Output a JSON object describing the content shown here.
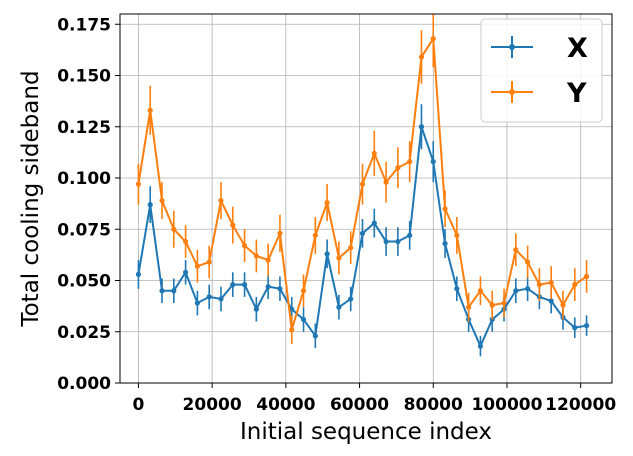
{
  "chart_data": {
    "type": "line",
    "xlabel": "Initial sequence index",
    "ylabel": "Total cooling sideband",
    "xlim": [
      -5000,
      128500
    ],
    "ylim": [
      0,
      0.18
    ],
    "xticks": [
      0,
      20000,
      40000,
      60000,
      80000,
      100000,
      120000
    ],
    "xtick_labels": [
      "0",
      "20000",
      "40000",
      "60000",
      "80000",
      "100000",
      "120000"
    ],
    "yticks": [
      0.0,
      0.025,
      0.05,
      0.075,
      0.1,
      0.125,
      0.15,
      0.175
    ],
    "ytick_labels": [
      "0.000",
      "0.025",
      "0.050",
      "0.075",
      "0.100",
      "0.125",
      "0.150",
      "0.175"
    ],
    "grid": true,
    "legend_position": "top-right",
    "x": [
      0,
      3200,
      6400,
      9600,
      12800,
      16000,
      19200,
      22400,
      25600,
      28800,
      32000,
      35200,
      38400,
      41600,
      44800,
      48000,
      51200,
      54400,
      57600,
      60800,
      64000,
      67200,
      70400,
      73600,
      76800,
      80000,
      83200,
      86400,
      89600,
      92800,
      96000,
      99200,
      102400,
      105600,
      108800,
      112000,
      115200,
      118400,
      121600
    ],
    "series": [
      {
        "name": "X",
        "color": "#1f77b4",
        "values": [
          0.053,
          0.087,
          0.045,
          0.045,
          0.054,
          0.039,
          0.042,
          0.041,
          0.048,
          0.048,
          0.036,
          0.047,
          0.046,
          0.036,
          0.031,
          0.023,
          0.063,
          0.037,
          0.041,
          0.073,
          0.078,
          0.069,
          0.069,
          0.072,
          0.125,
          0.108,
          0.068,
          0.046,
          0.031,
          0.018,
          0.031,
          0.036,
          0.045,
          0.046,
          0.042,
          0.04,
          0.032,
          0.027,
          0.028
        ],
        "errors": [
          0.007,
          0.009,
          0.006,
          0.006,
          0.006,
          0.006,
          0.006,
          0.006,
          0.006,
          0.006,
          0.006,
          0.006,
          0.006,
          0.006,
          0.006,
          0.006,
          0.007,
          0.006,
          0.006,
          0.007,
          0.007,
          0.007,
          0.007,
          0.007,
          0.011,
          0.01,
          0.007,
          0.006,
          0.006,
          0.005,
          0.006,
          0.006,
          0.006,
          0.006,
          0.006,
          0.006,
          0.006,
          0.005,
          0.005
        ]
      },
      {
        "name": "Y",
        "color": "#ff7f0e",
        "values": [
          0.097,
          0.133,
          0.089,
          0.075,
          0.069,
          0.057,
          0.059,
          0.089,
          0.077,
          0.067,
          0.062,
          0.06,
          0.073,
          0.026,
          0.045,
          0.072,
          0.088,
          0.061,
          0.066,
          0.097,
          0.112,
          0.098,
          0.105,
          0.108,
          0.159,
          0.168,
          0.085,
          0.072,
          0.037,
          0.045,
          0.038,
          0.039,
          0.065,
          0.059,
          0.048,
          0.049,
          0.038,
          0.048,
          0.052
        ],
        "errors": [
          0.01,
          0.012,
          0.009,
          0.009,
          0.008,
          0.008,
          0.008,
          0.009,
          0.009,
          0.008,
          0.008,
          0.008,
          0.009,
          0.007,
          0.008,
          0.009,
          0.009,
          0.008,
          0.008,
          0.01,
          0.011,
          0.01,
          0.01,
          0.01,
          0.013,
          0.014,
          0.009,
          0.009,
          0.007,
          0.007,
          0.007,
          0.007,
          0.008,
          0.008,
          0.008,
          0.008,
          0.007,
          0.008,
          0.008
        ]
      }
    ]
  }
}
